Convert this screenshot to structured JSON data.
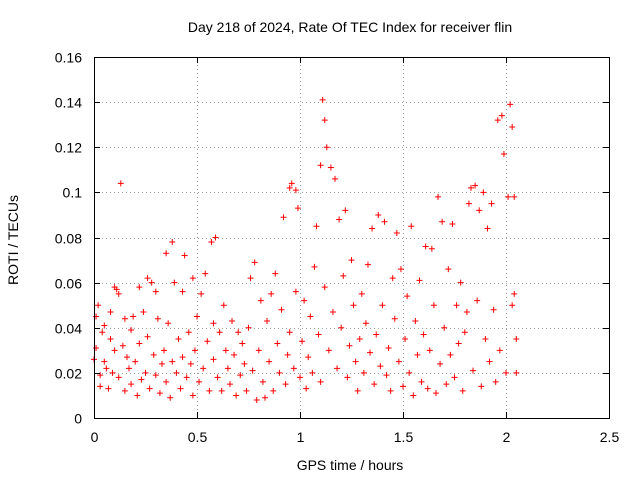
{
  "chart_data": {
    "type": "scatter",
    "title": "Day 218 of 2024, Rate Of TEC Index for receiver flin",
    "xlabel": "GPS time / hours",
    "ylabel": "ROTI / TECUs",
    "xlim": [
      0,
      2.5
    ],
    "ylim": [
      0,
      0.16
    ],
    "x_ticks": [
      "0",
      "0.5",
      "1",
      "1.5",
      "2",
      "2.5"
    ],
    "y_ticks": [
      "0",
      "0.02",
      "0.04",
      "0.06",
      "0.08",
      "0.1",
      "0.12",
      "0.14",
      "0.16"
    ],
    "grid": true,
    "marker": "+",
    "color": "#ff0000",
    "series": [
      {
        "points": [
          [
            0.0,
            0.026
          ],
          [
            0.01,
            0.045
          ],
          [
            0.01,
            0.031
          ],
          [
            0.02,
            0.05
          ],
          [
            0.03,
            0.019
          ],
          [
            0.03,
            0.014
          ],
          [
            0.04,
            0.038
          ],
          [
            0.05,
            0.025
          ],
          [
            0.05,
            0.041
          ],
          [
            0.06,
            0.022
          ],
          [
            0.07,
            0.013
          ],
          [
            0.08,
            0.035
          ],
          [
            0.08,
            0.047
          ],
          [
            0.09,
            0.02
          ],
          [
            0.1,
            0.058
          ],
          [
            0.1,
            0.03
          ],
          [
            0.11,
            0.057
          ],
          [
            0.12,
            0.055
          ],
          [
            0.12,
            0.018
          ],
          [
            0.13,
            0.104
          ],
          [
            0.14,
            0.032
          ],
          [
            0.15,
            0.044
          ],
          [
            0.15,
            0.012
          ],
          [
            0.16,
            0.027
          ],
          [
            0.17,
            0.022
          ],
          [
            0.18,
            0.039
          ],
          [
            0.18,
            0.015
          ],
          [
            0.19,
            0.045
          ],
          [
            0.2,
            0.025
          ],
          [
            0.21,
            0.01
          ],
          [
            0.22,
            0.058
          ],
          [
            0.22,
            0.033
          ],
          [
            0.23,
            0.017
          ],
          [
            0.24,
            0.047
          ],
          [
            0.25,
            0.02
          ],
          [
            0.26,
            0.062
          ],
          [
            0.26,
            0.036
          ],
          [
            0.27,
            0.013
          ],
          [
            0.28,
            0.06
          ],
          [
            0.29,
            0.028
          ],
          [
            0.3,
            0.056
          ],
          [
            0.3,
            0.019
          ],
          [
            0.31,
            0.044
          ],
          [
            0.32,
            0.011
          ],
          [
            0.33,
            0.024
          ],
          [
            0.34,
            0.03
          ],
          [
            0.35,
            0.073
          ],
          [
            0.35,
            0.016
          ],
          [
            0.36,
            0.042
          ],
          [
            0.37,
            0.009
          ],
          [
            0.38,
            0.025
          ],
          [
            0.38,
            0.078
          ],
          [
            0.39,
            0.06
          ],
          [
            0.4,
            0.02
          ],
          [
            0.41,
            0.035
          ],
          [
            0.42,
            0.013
          ],
          [
            0.43,
            0.056
          ],
          [
            0.43,
            0.027
          ],
          [
            0.44,
            0.072
          ],
          [
            0.45,
            0.018
          ],
          [
            0.46,
            0.038
          ],
          [
            0.47,
            0.024
          ],
          [
            0.48,
            0.062
          ],
          [
            0.48,
            0.01
          ],
          [
            0.49,
            0.03
          ],
          [
            0.5,
            0.045
          ],
          [
            0.51,
            0.016
          ],
          [
            0.52,
            0.055
          ],
          [
            0.53,
            0.022
          ],
          [
            0.54,
            0.064
          ],
          [
            0.55,
            0.034
          ],
          [
            0.56,
            0.012
          ],
          [
            0.57,
            0.078
          ],
          [
            0.58,
            0.042
          ],
          [
            0.58,
            0.026
          ],
          [
            0.59,
            0.08
          ],
          [
            0.6,
            0.018
          ],
          [
            0.61,
            0.038
          ],
          [
            0.62,
            0.012
          ],
          [
            0.63,
            0.05
          ],
          [
            0.64,
            0.03
          ],
          [
            0.65,
            0.022
          ],
          [
            0.66,
            0.015
          ],
          [
            0.67,
            0.043
          ],
          [
            0.68,
            0.028
          ],
          [
            0.69,
            0.01
          ],
          [
            0.7,
            0.038
          ],
          [
            0.71,
            0.019
          ],
          [
            0.72,
            0.033
          ],
          [
            0.73,
            0.024
          ],
          [
            0.74,
            0.012
          ],
          [
            0.75,
            0.04
          ],
          [
            0.76,
            0.062
          ],
          [
            0.77,
            0.021
          ],
          [
            0.78,
            0.069
          ],
          [
            0.79,
            0.008
          ],
          [
            0.8,
            0.03
          ],
          [
            0.81,
            0.052
          ],
          [
            0.82,
            0.016
          ],
          [
            0.83,
            0.009
          ],
          [
            0.84,
            0.043
          ],
          [
            0.85,
            0.025
          ],
          [
            0.86,
            0.055
          ],
          [
            0.87,
            0.012
          ],
          [
            0.88,
            0.064
          ],
          [
            0.89,
            0.033
          ],
          [
            0.9,
            0.02
          ],
          [
            0.91,
            0.048
          ],
          [
            0.92,
            0.089
          ],
          [
            0.93,
            0.015
          ],
          [
            0.94,
            0.028
          ],
          [
            0.95,
            0.102
          ],
          [
            0.95,
            0.038
          ],
          [
            0.96,
            0.104
          ],
          [
            0.97,
            0.022
          ],
          [
            0.98,
            0.101
          ],
          [
            0.98,
            0.056
          ],
          [
            0.99,
            0.093
          ],
          [
            1.0,
            0.018
          ],
          [
            1.01,
            0.034
          ],
          [
            1.02,
            0.052
          ],
          [
            1.03,
            0.013
          ],
          [
            1.04,
            0.027
          ],
          [
            1.05,
            0.045
          ],
          [
            1.06,
            0.02
          ],
          [
            1.07,
            0.067
          ],
          [
            1.08,
            0.085
          ],
          [
            1.09,
            0.037
          ],
          [
            1.1,
            0.112
          ],
          [
            1.1,
            0.016
          ],
          [
            1.11,
            0.141
          ],
          [
            1.12,
            0.132
          ],
          [
            1.12,
            0.058
          ],
          [
            1.13,
            0.12
          ],
          [
            1.14,
            0.03
          ],
          [
            1.15,
            0.111
          ],
          [
            1.16,
            0.047
          ],
          [
            1.17,
            0.106
          ],
          [
            1.18,
            0.022
          ],
          [
            1.19,
            0.088
          ],
          [
            1.2,
            0.04
          ],
          [
            1.21,
            0.063
          ],
          [
            1.22,
            0.092
          ],
          [
            1.23,
            0.018
          ],
          [
            1.24,
            0.032
          ],
          [
            1.25,
            0.07
          ],
          [
            1.26,
            0.05
          ],
          [
            1.27,
            0.025
          ],
          [
            1.28,
            0.012
          ],
          [
            1.29,
            0.035
          ],
          [
            1.3,
            0.055
          ],
          [
            1.31,
            0.02
          ],
          [
            1.32,
            0.042
          ],
          [
            1.33,
            0.068
          ],
          [
            1.34,
            0.029
          ],
          [
            1.35,
            0.084
          ],
          [
            1.36,
            0.015
          ],
          [
            1.37,
            0.037
          ],
          [
            1.38,
            0.09
          ],
          [
            1.39,
            0.023
          ],
          [
            1.4,
            0.05
          ],
          [
            1.41,
            0.087
          ],
          [
            1.42,
            0.019
          ],
          [
            1.43,
            0.031
          ],
          [
            1.44,
            0.012
          ],
          [
            1.45,
            0.062
          ],
          [
            1.46,
            0.044
          ],
          [
            1.47,
            0.082
          ],
          [
            1.48,
            0.025
          ],
          [
            1.49,
            0.066
          ],
          [
            1.5,
            0.014
          ],
          [
            1.51,
            0.035
          ],
          [
            1.52,
            0.054
          ],
          [
            1.53,
            0.02
          ],
          [
            1.54,
            0.085
          ],
          [
            1.55,
            0.01
          ],
          [
            1.56,
            0.043
          ],
          [
            1.57,
            0.028
          ],
          [
            1.58,
            0.061
          ],
          [
            1.59,
            0.016
          ],
          [
            1.6,
            0.037
          ],
          [
            1.61,
            0.076
          ],
          [
            1.62,
            0.013
          ],
          [
            1.63,
            0.03
          ],
          [
            1.64,
            0.075
          ],
          [
            1.65,
            0.05
          ],
          [
            1.66,
            0.011
          ],
          [
            1.67,
            0.098
          ],
          [
            1.68,
            0.024
          ],
          [
            1.69,
            0.087
          ],
          [
            1.7,
            0.04
          ],
          [
            1.71,
            0.015
          ],
          [
            1.72,
            0.066
          ],
          [
            1.73,
            0.028
          ],
          [
            1.74,
            0.086
          ],
          [
            1.75,
            0.018
          ],
          [
            1.76,
            0.05
          ],
          [
            1.77,
            0.033
          ],
          [
            1.78,
            0.06
          ],
          [
            1.79,
            0.012
          ],
          [
            1.8,
            0.038
          ],
          [
            1.81,
            0.047
          ],
          [
            1.82,
            0.095
          ],
          [
            1.83,
            0.102
          ],
          [
            1.84,
            0.021
          ],
          [
            1.85,
            0.103
          ],
          [
            1.86,
            0.052
          ],
          [
            1.87,
            0.092
          ],
          [
            1.88,
            0.014
          ],
          [
            1.89,
            0.1
          ],
          [
            1.9,
            0.035
          ],
          [
            1.91,
            0.084
          ],
          [
            1.92,
            0.025
          ],
          [
            1.93,
            0.095
          ],
          [
            1.94,
            0.048
          ],
          [
            1.95,
            0.016
          ],
          [
            1.96,
            0.132
          ],
          [
            1.97,
            0.03
          ],
          [
            1.98,
            0.134
          ],
          [
            1.99,
            0.117
          ],
          [
            2.0,
            0.02
          ],
          [
            2.01,
            0.098
          ],
          [
            2.02,
            0.139
          ],
          [
            2.03,
            0.05
          ],
          [
            2.03,
            0.129
          ],
          [
            2.04,
            0.055
          ],
          [
            2.04,
            0.098
          ],
          [
            2.05,
            0.035
          ],
          [
            2.05,
            0.02
          ]
        ]
      }
    ]
  }
}
